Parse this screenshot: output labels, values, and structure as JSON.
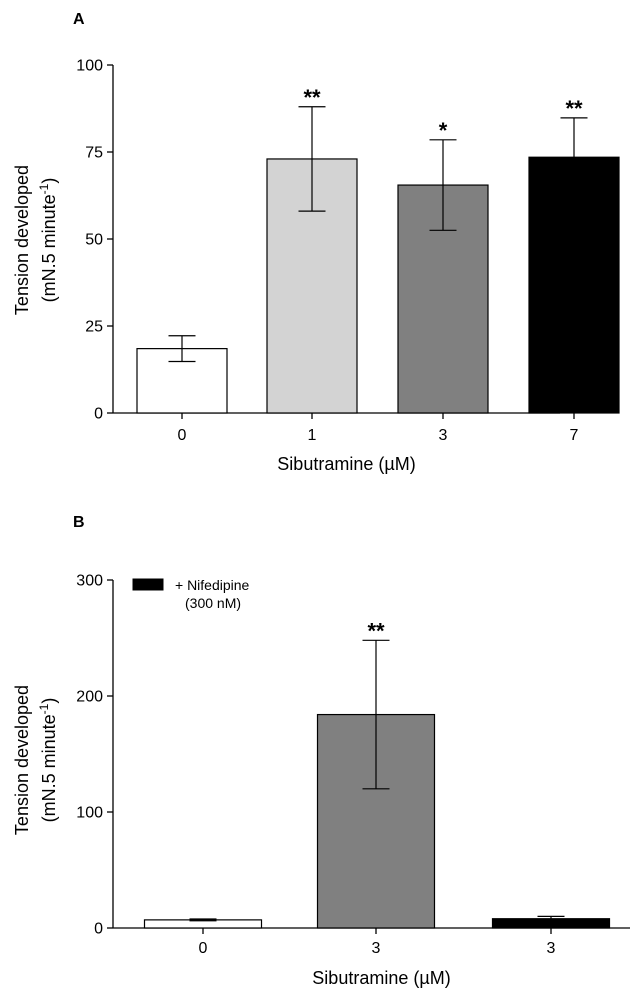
{
  "chart_data": [
    {
      "type": "bar",
      "panel_label": "A",
      "categories": [
        "0",
        "1",
        "3",
        "7"
      ],
      "values": [
        18.5,
        73,
        65.5,
        73.5
      ],
      "errors": [
        3.7,
        15,
        13,
        11.3
      ],
      "significance": [
        "",
        "**",
        "*",
        "**"
      ],
      "bar_colors": [
        "#ffffff",
        "#d3d3d3",
        "#808080",
        "#000000"
      ],
      "xlabel": "Sibutramine (µM)",
      "ylabel_line1": "Tension developed",
      "ylabel_line2_pre": "(mN.5 minute",
      "ylabel_line2_sup": "-1",
      "ylabel_line2_post": ")",
      "ylim": [
        0,
        100
      ],
      "yticks": [
        0,
        25,
        50,
        75,
        100
      ],
      "grid": false
    },
    {
      "type": "bar",
      "panel_label": "B",
      "categories": [
        "0",
        "3",
        "3"
      ],
      "values": [
        7,
        184,
        8
      ],
      "errors": [
        0.8,
        64,
        2
      ],
      "significance": [
        "",
        "**",
        ""
      ],
      "bar_colors": [
        "#ffffff",
        "#808080",
        "#000000"
      ],
      "xlabel": "Sibutramine (µM)",
      "ylabel_line1": "Tension developed",
      "ylabel_line2_pre": "(mN.5 minute",
      "ylabel_line2_sup": "-1",
      "ylabel_line2_post": ")",
      "ylim": [
        0,
        300
      ],
      "yticks": [
        0,
        100,
        200,
        300
      ],
      "legend": {
        "label_line1": "+ Nifedipine",
        "label_line2": "(300 nM)",
        "color": "#000000",
        "position": "top-left"
      },
      "grid": false
    }
  ]
}
